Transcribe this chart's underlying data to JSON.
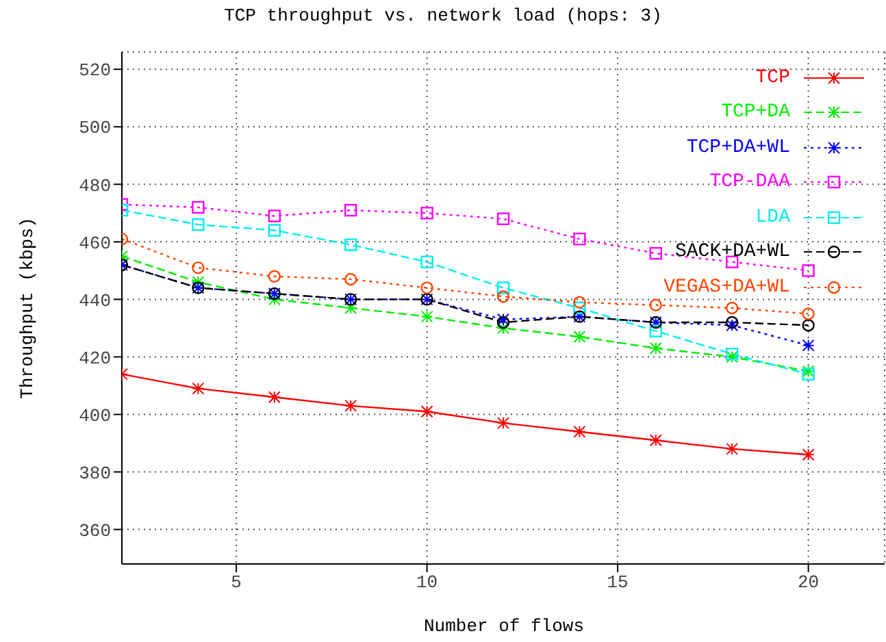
{
  "chart_data": {
    "type": "line",
    "title": "TCP throughput vs. network load (hops: 3)",
    "xlabel": "Number of flows",
    "ylabel": "Throughput (kbps)",
    "x": [
      2,
      4,
      6,
      8,
      10,
      12,
      14,
      16,
      18,
      20
    ],
    "xlim": [
      2,
      22
    ],
    "xticks": [
      5,
      10,
      15,
      20
    ],
    "ylim": [
      348,
      526
    ],
    "yticks": [
      360,
      380,
      400,
      420,
      440,
      460,
      480,
      500,
      520
    ],
    "grid": true,
    "legend": "top right",
    "series": [
      {
        "name": "TCP",
        "color": "#ff0000",
        "marker": "cross",
        "line_style": "solid",
        "values": [
          414,
          409,
          406,
          403,
          401,
          397,
          394,
          391,
          388,
          386
        ]
      },
      {
        "name": "TCP+DA",
        "color": "#00ee00",
        "marker": "cross",
        "line_style": "dashed",
        "values": [
          455,
          446,
          440,
          437,
          434,
          430,
          427,
          423,
          420,
          415
        ]
      },
      {
        "name": "TCP+DA+WL",
        "color": "#0000ff",
        "marker": "cross",
        "line_style": "dotted",
        "values": [
          452,
          444,
          442,
          440,
          440,
          433,
          434,
          432,
          431,
          424
        ]
      },
      {
        "name": "TCP-DAA",
        "color": "#ff00ff",
        "marker": "square",
        "line_style": "dotted",
        "values": [
          473,
          472,
          469,
          471,
          470,
          468,
          461,
          456,
          453,
          450
        ]
      },
      {
        "name": "LDA",
        "color": "#00eeee",
        "marker": "square",
        "line_style": "dashed",
        "values": [
          471,
          466,
          464,
          459,
          453,
          444,
          437,
          429,
          421,
          414
        ]
      },
      {
        "name": "SACK+DA+WL",
        "color": "#000000",
        "marker": "circle",
        "line_style": "dashed",
        "values": [
          452,
          444,
          442,
          440,
          440,
          432,
          434,
          432,
          432,
          431
        ]
      },
      {
        "name": "VEGAS+DA+WL",
        "color": "#ff4500",
        "marker": "circle",
        "line_style": "dotted",
        "values": [
          461,
          451,
          448,
          447,
          444,
          441,
          439,
          438,
          437,
          435
        ]
      }
    ]
  }
}
